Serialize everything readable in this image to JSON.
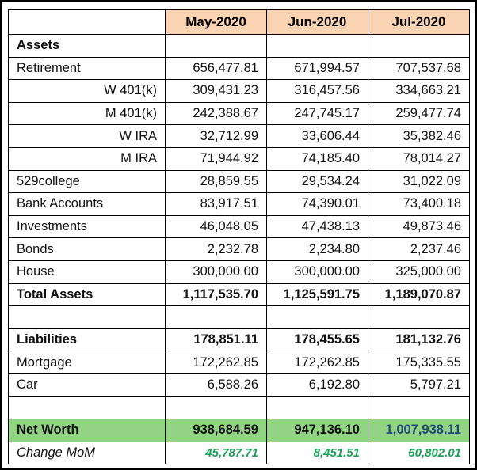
{
  "header": {
    "columns": [
      "May-2020",
      "Jun-2020",
      "Jul-2020"
    ]
  },
  "table": {
    "rows": [
      {
        "label": "Assets"
      },
      {
        "label": "Retirement",
        "values": [
          "656,477.81",
          "671,994.57",
          "707,537.68"
        ]
      },
      {
        "label": "W 401(k)",
        "values": [
          "309,431.23",
          "316,457.56",
          "334,663.21"
        ]
      },
      {
        "label": "M 401(k)",
        "values": [
          "242,388.67",
          "247,745.17",
          "259,477.74"
        ]
      },
      {
        "label": "W IRA",
        "values": [
          "32,712.99",
          "33,606.44",
          "35,382.46"
        ]
      },
      {
        "label": "M IRA",
        "values": [
          "71,944.92",
          "74,185.40",
          "78,014.27"
        ]
      },
      {
        "label": "529college",
        "values": [
          "28,859.55",
          "29,534.24",
          "31,022.09"
        ]
      },
      {
        "label": "Bank Accounts",
        "values": [
          "83,917.51",
          "74,390.01",
          "73,400.18"
        ]
      },
      {
        "label": "Investments",
        "values": [
          "46,048.05",
          "47,438.13",
          "49,873.46"
        ]
      },
      {
        "label": "Bonds",
        "values": [
          "2,232.78",
          "2,234.80",
          "2,237.46"
        ]
      },
      {
        "label": "House",
        "values": [
          "300,000.00",
          "300,000.00",
          "325,000.00"
        ]
      },
      {
        "label": "Total Assets",
        "values": [
          "1,117,535.70",
          "1,125,591.75",
          "1,189,070.87"
        ]
      },
      null,
      {
        "label": "Liabilities",
        "values": [
          "178,851.11",
          "178,455.65",
          "181,132.76"
        ]
      },
      {
        "label": "Mortgage",
        "values": [
          "172,262.85",
          "172,262.85",
          "175,335.55"
        ]
      },
      {
        "label": "Car",
        "values": [
          "6,588.26",
          "6,192.80",
          "5,797.21"
        ]
      },
      null,
      {
        "label": "Net Worth",
        "values": [
          "938,684.59",
          "947,136.10",
          "1,007,938.11"
        ]
      },
      {
        "label": "Change MoM",
        "values": [
          "45,787.71",
          "8,451.51",
          "60,802.01"
        ]
      }
    ]
  }
}
